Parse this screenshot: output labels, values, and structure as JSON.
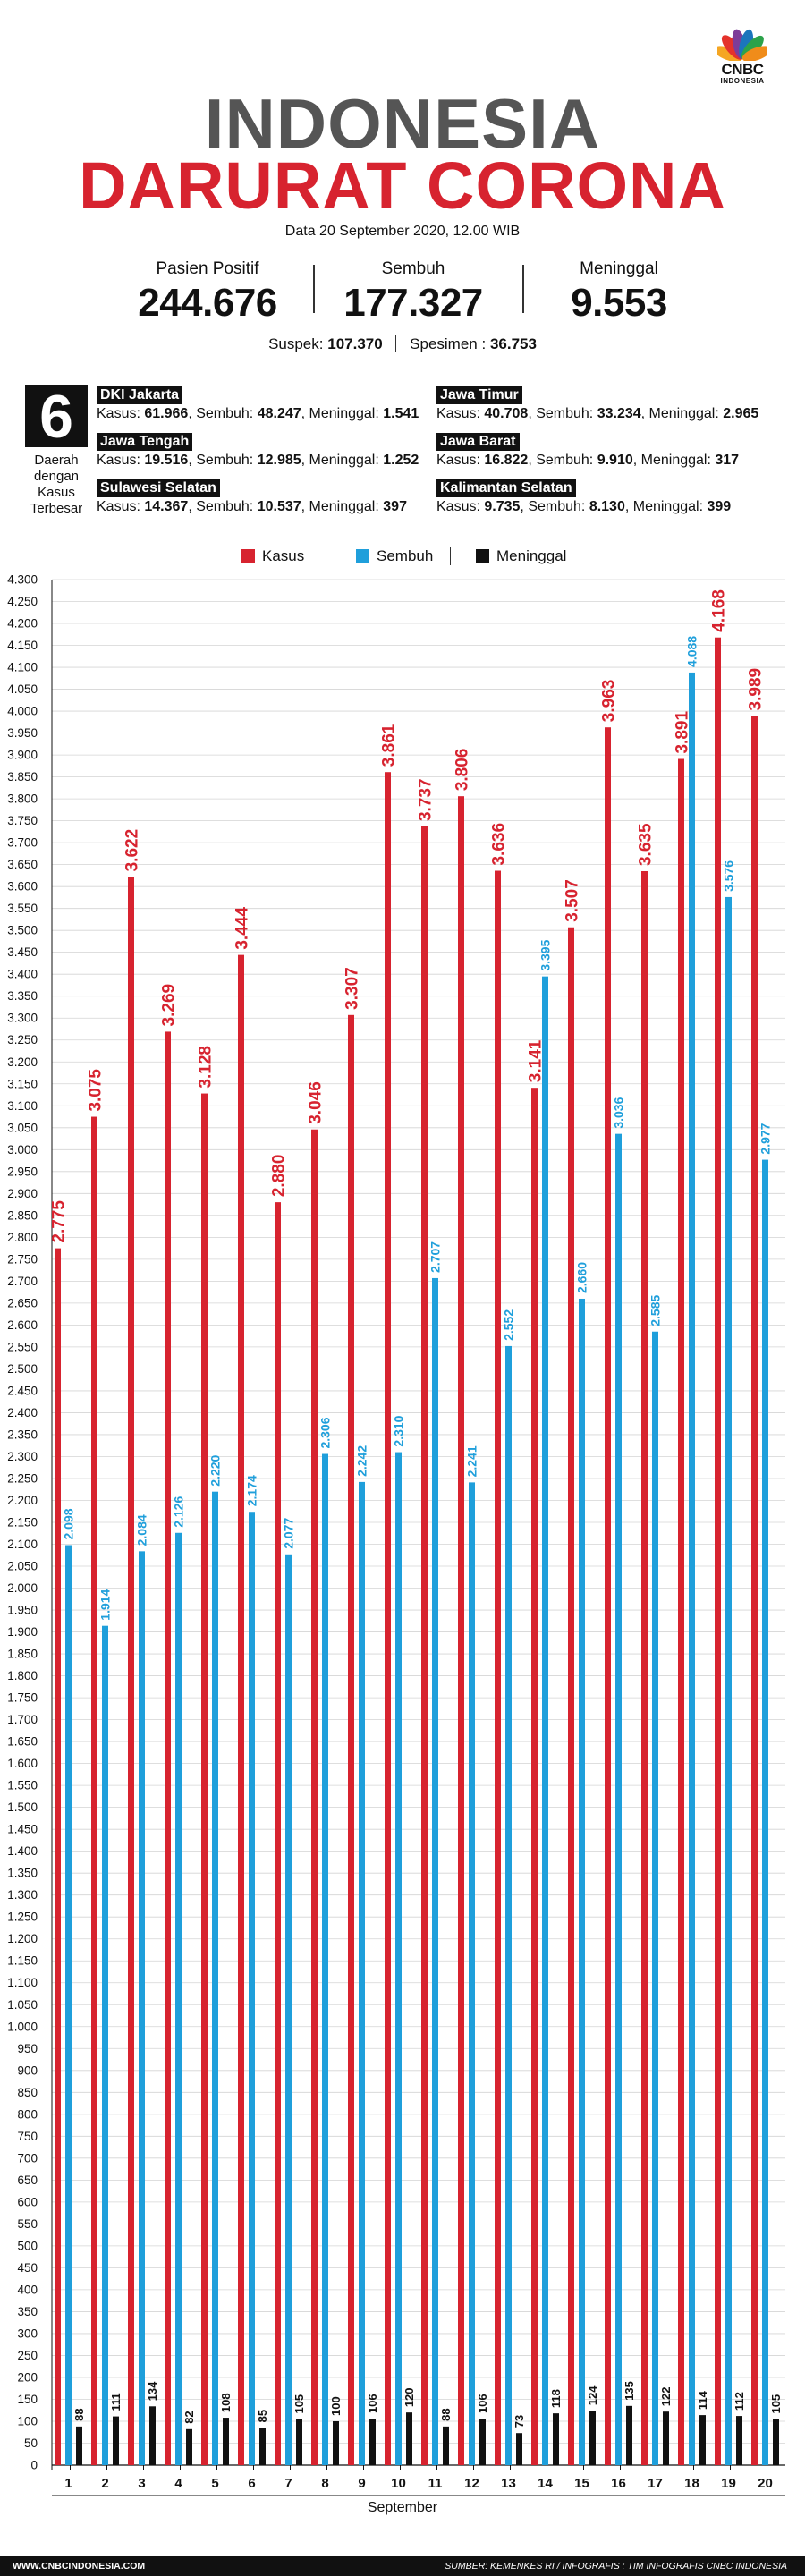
{
  "logo": {
    "name": "CNBC",
    "sub": "INDONESIA"
  },
  "header": {
    "title_line1": "INDONESIA",
    "title_line2": "DARURAT CORONA",
    "date": "Data 20 September 2020, 12.00 WIB"
  },
  "stats": [
    {
      "label": "Pasien Positif",
      "value": "244.676"
    },
    {
      "label": "Sembuh",
      "value": "177.327"
    },
    {
      "label": "Meninggal",
      "value": "9.553"
    }
  ],
  "sub_stats": {
    "suspek_label": "Suspek:",
    "suspek_value": "107.370",
    "spesimen_label": "Spesimen :",
    "spesimen_value": "36.753"
  },
  "regions_box": {
    "count": "6",
    "label_lines": [
      "Daerah",
      "dengan",
      "Kasus",
      "Terbesar"
    ]
  },
  "regions": [
    {
      "name": "DKI Jakarta",
      "kasus": "61.966",
      "sembuh": "48.247",
      "meninggal": "1.541"
    },
    {
      "name": "Jawa Timur",
      "kasus": "40.708",
      "sembuh": "33.234",
      "meninggal": "2.965"
    },
    {
      "name": "Jawa Tengah",
      "kasus": "19.516",
      "sembuh": "12.985",
      "meninggal": "1.252"
    },
    {
      "name": "Jawa Barat",
      "kasus": "16.822",
      "sembuh": "9.910",
      "meninggal": "317"
    },
    {
      "name": "Sulawesi Selatan",
      "kasus": "14.367",
      "sembuh": "10.537",
      "meninggal": "397"
    },
    {
      "name": "Kalimantan Selatan",
      "kasus": "9.735",
      "sembuh": "8.130",
      "meninggal": "399"
    }
  ],
  "region_labels": {
    "kasus": "Kasus:",
    "sembuh": "Sembuh:",
    "meninggal": "Meninggal:"
  },
  "chart_data": {
    "type": "bar",
    "title": "",
    "xlabel": "September",
    "ylabel": "",
    "ylim": [
      0,
      4300
    ],
    "ytick_step": 50,
    "grid": true,
    "legend_position": "top",
    "categories": [
      "1",
      "2",
      "3",
      "4",
      "5",
      "6",
      "7",
      "8",
      "9",
      "10",
      "11",
      "12",
      "13",
      "14",
      "15",
      "16",
      "17",
      "18",
      "19",
      "20"
    ],
    "series": [
      {
        "name": "Kasus",
        "color": "#d7232f",
        "values": [
          2775,
          3075,
          3622,
          3269,
          3128,
          3444,
          2880,
          3046,
          3307,
          3861,
          3737,
          3806,
          3636,
          3141,
          3507,
          3963,
          3635,
          3891,
          4168,
          3989
        ],
        "labels": [
          "2.775",
          "3.075",
          "3.622",
          "3.269",
          "3.128",
          "3.444",
          "2.880",
          "3.046",
          "3.307",
          "3.861",
          "3.737",
          "3.806",
          "3.636",
          "3.141",
          "3.507",
          "3.963",
          "3.635",
          "3.891",
          "4.168",
          "3.989"
        ]
      },
      {
        "name": "Sembuh",
        "color": "#1f9fdb",
        "values": [
          2098,
          1914,
          2084,
          2126,
          2220,
          2174,
          2077,
          2306,
          2242,
          2310,
          2707,
          2241,
          2552,
          3395,
          2660,
          3036,
          2585,
          4088,
          3576,
          2977
        ],
        "labels": [
          "2.098",
          "1.914",
          "2.084",
          "2.126",
          "2.220",
          "2.174",
          "2.077",
          "2.306",
          "2.242",
          "2.310",
          "2.707",
          "2.241",
          "2.552",
          "3.395",
          "2.660",
          "3.036",
          "2.585",
          "4.088",
          "3.576",
          "2.977"
        ]
      },
      {
        "name": "Meninggal",
        "color": "#111111",
        "values": [
          88,
          111,
          134,
          82,
          108,
          85,
          105,
          100,
          106,
          120,
          88,
          106,
          73,
          118,
          124,
          135,
          122,
          114,
          112,
          105
        ],
        "labels": [
          "88",
          "111",
          "134",
          "82",
          "108",
          "85",
          "105",
          "100",
          "106",
          "120",
          "88",
          "106",
          "73",
          "118",
          "124",
          "135",
          "122",
          "114",
          "112",
          "105"
        ]
      }
    ]
  },
  "footer": {
    "left": "WWW.CNBCINDONESIA.COM",
    "right": "SUMBER: KEMENKES RI / INFOGRAFIS : TIM INFOGRAFIS CNBC INDONESIA"
  }
}
